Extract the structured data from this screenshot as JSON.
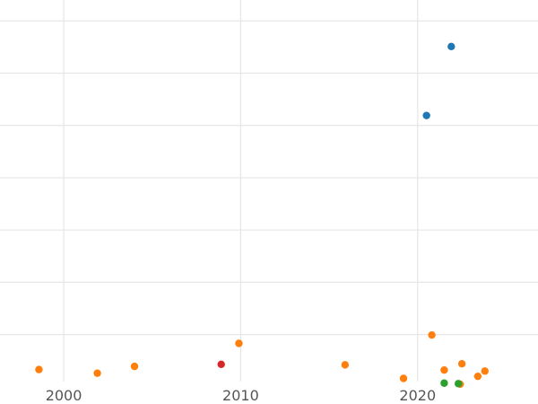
{
  "chart_data": {
    "type": "scatter",
    "title": "",
    "xlabel": "",
    "ylabel": "",
    "grid": true,
    "legend": "none",
    "xlim": [
      1996.4,
      2026.8
    ],
    "ylim": [
      -0.9,
      6.4
    ],
    "x_ticks": [
      2000,
      2010,
      2020
    ],
    "x_tick_labels": [
      "2000",
      "2010",
      "2020"
    ],
    "y_gridlines": [
      0,
      1,
      2,
      3,
      4,
      5,
      6
    ],
    "series": [
      {
        "color": "#1f77b4",
        "points": [
          {
            "x": 2021.9,
            "y": 5.51
          },
          {
            "x": 2020.5,
            "y": 4.19
          }
        ]
      },
      {
        "color": "#ff7f0e",
        "points": [
          {
            "x": 1998.6,
            "y": -0.67
          },
          {
            "x": 2001.9,
            "y": -0.74
          },
          {
            "x": 2004.0,
            "y": -0.61
          },
          {
            "x": 2009.9,
            "y": -0.17
          },
          {
            "x": 2015.9,
            "y": -0.58
          },
          {
            "x": 2019.2,
            "y": -0.84
          },
          {
            "x": 2020.8,
            "y": -0.01
          },
          {
            "x": 2021.5,
            "y": -0.68
          },
          {
            "x": 2022.4,
            "y": -0.95
          },
          {
            "x": 2022.5,
            "y": -0.56
          },
          {
            "x": 2023.4,
            "y": -0.8
          },
          {
            "x": 2023.8,
            "y": -0.7
          }
        ]
      },
      {
        "color": "#d62728",
        "points": [
          {
            "x": 2008.9,
            "y": -0.57
          }
        ]
      },
      {
        "color": "#2ca02c",
        "points": [
          {
            "x": 2021.5,
            "y": -0.93
          },
          {
            "x": 2022.3,
            "y": -0.94
          }
        ]
      }
    ]
  }
}
